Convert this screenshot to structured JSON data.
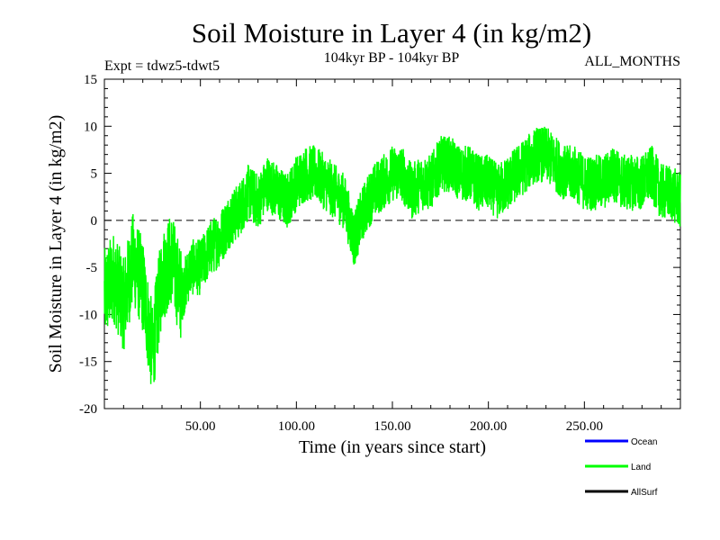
{
  "chart_data": {
    "type": "line",
    "title": "Soil Moisture in Layer 4 (in kg/m2)",
    "subtitle": "104kyr BP - 104kyr BP",
    "expt_label": "Expt = tdwz5-tdwt5",
    "months_label": "ALL_MONTHS",
    "xlabel": "Time (in years since start)",
    "ylabel": "Soil Moisture in Layer 4 (in kg/m2)",
    "xlim": [
      0,
      300
    ],
    "ylim": [
      -20,
      15
    ],
    "x_ticks": [
      50,
      100,
      150,
      200,
      250
    ],
    "x_tick_labels": [
      "50.00",
      "100.00",
      "150.00",
      "200.00",
      "250.00"
    ],
    "y_ticks": [
      -20,
      -15,
      -10,
      -5,
      0,
      5,
      10,
      15
    ],
    "y_tick_labels": [
      "-20",
      "-15",
      "-10",
      "-5",
      "0",
      "5",
      "10",
      "15"
    ],
    "zero_line": 0,
    "legend_position": "bottom-right",
    "series": [
      {
        "name": "Ocean",
        "color": "#0000ff",
        "values": []
      },
      {
        "name": "Land",
        "color": "#00ff00",
        "x": [
          0,
          5,
          10,
          15,
          20,
          25,
          30,
          35,
          40,
          45,
          50,
          55,
          60,
          65,
          70,
          75,
          80,
          85,
          90,
          95,
          100,
          105,
          110,
          115,
          120,
          125,
          130,
          135,
          140,
          145,
          150,
          155,
          160,
          165,
          170,
          175,
          180,
          185,
          190,
          195,
          200,
          205,
          210,
          215,
          220,
          225,
          230,
          235,
          240,
          245,
          250,
          255,
          260,
          265,
          270,
          275,
          280,
          285,
          290,
          295,
          300
        ],
        "values": [
          -8,
          -6,
          -9,
          -4,
          -7,
          -14,
          -6,
          -4,
          -8,
          -5,
          -5,
          -3,
          -2,
          0,
          1,
          3,
          2,
          4,
          3,
          2,
          4,
          5,
          5,
          4,
          3,
          2,
          -2,
          1,
          3,
          4,
          5,
          5,
          3,
          4,
          4,
          6,
          6,
          5,
          5,
          4,
          4,
          3,
          4,
          5,
          6,
          7,
          7,
          6,
          5,
          5,
          4,
          4,
          4,
          5,
          4,
          4,
          4,
          5,
          3,
          3,
          2
        ]
      },
      {
        "name": "AllSurf",
        "color": "#000000",
        "values": []
      }
    ]
  }
}
